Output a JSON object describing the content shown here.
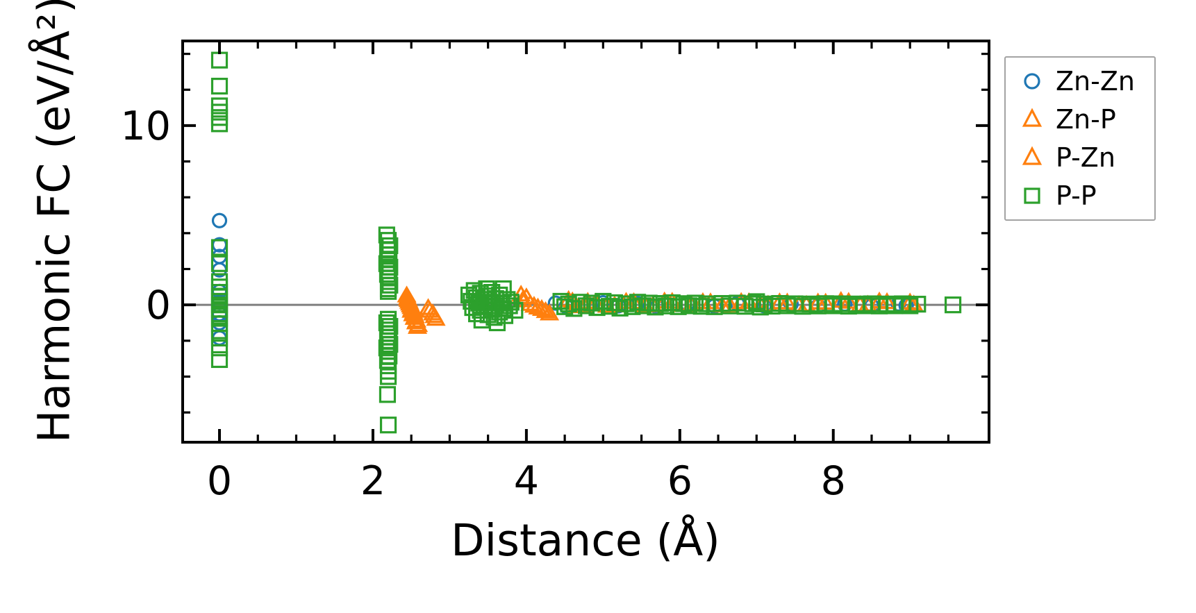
{
  "figure": {
    "background": "#ffffff",
    "axes": {
      "xlabel": "Distance (Å)",
      "ylabel": "Harmonic FC (eV/Å²)",
      "xlim": [
        -0.48,
        10.03
      ],
      "ylim": [
        -7.66,
        14.72
      ],
      "xtick_labels": [
        "0",
        "2",
        "4",
        "6",
        "8"
      ],
      "xticks_major": [
        0,
        2,
        4,
        6,
        8
      ],
      "xticks_minor": [
        0.5,
        1.0,
        1.5,
        2.5,
        3.0,
        3.5,
        4.5,
        5.0,
        5.5,
        6.5,
        7.0,
        7.5,
        8.5,
        9.0,
        9.5
      ],
      "ytick_labels": [
        "0",
        "10"
      ],
      "yticks_major": [
        0,
        10
      ],
      "yticks_minor": [
        -6,
        -4,
        -2,
        2,
        4,
        6,
        8,
        12,
        14
      ],
      "spine_color": "#000000",
      "zero_line_color": "#7f7f7f",
      "tick_label_color": "#000000"
    }
  },
  "chart_data": {
    "type": "scatter",
    "title": "",
    "xlabel": "Distance (Å)",
    "ylabel": "Harmonic FC (eV/Å²)",
    "xlim": [
      -0.48,
      10.03
    ],
    "ylim": [
      -7.66,
      14.72
    ],
    "grid": false,
    "legend_position": "outside-right",
    "series": [
      {
        "name": "Zn-Zn",
        "marker": "circle",
        "color": "#1f77b4",
        "points": [
          [
            0,
            4.7
          ],
          [
            0,
            3.35
          ],
          [
            0,
            2.7
          ],
          [
            0,
            1.95
          ],
          [
            0,
            0.75
          ],
          [
            0,
            0.15
          ],
          [
            0,
            -0.5
          ],
          [
            0,
            -1.0
          ],
          [
            0,
            -1.85
          ],
          [
            4.38,
            0.1
          ],
          [
            4.52,
            -0.08
          ],
          [
            5.0,
            0.12
          ],
          [
            5.2,
            -0.05
          ],
          [
            5.45,
            0.08
          ],
          [
            5.7,
            -0.1
          ],
          [
            6.1,
            0.05
          ],
          [
            6.45,
            -0.06
          ],
          [
            6.75,
            0.08
          ],
          [
            7.1,
            -0.05
          ],
          [
            7.45,
            0.05
          ],
          [
            7.8,
            -0.07
          ],
          [
            8.15,
            0.04
          ],
          [
            8.5,
            -0.05
          ],
          [
            8.85,
            0.05
          ],
          [
            8.95,
            -0.04
          ]
        ]
      },
      {
        "name": "Zn-P",
        "marker": "triangle",
        "color": "#ff7f0e",
        "points": [
          [
            2.44,
            0.45
          ],
          [
            2.46,
            0.2
          ],
          [
            2.48,
            0.0
          ],
          [
            2.5,
            -0.2
          ],
          [
            2.5,
            -0.4
          ],
          [
            2.52,
            -0.6
          ],
          [
            2.54,
            -0.8
          ],
          [
            2.56,
            -1.05
          ],
          [
            2.58,
            -1.3
          ],
          [
            2.72,
            -0.25
          ],
          [
            2.78,
            -0.55
          ],
          [
            2.82,
            -0.85
          ],
          [
            3.93,
            0.5
          ],
          [
            4.0,
            0.35
          ],
          [
            4.1,
            -0.12
          ],
          [
            4.2,
            -0.3
          ],
          [
            4.3,
            -0.55
          ],
          [
            4.55,
            0.2
          ],
          [
            4.65,
            -0.15
          ],
          [
            4.8,
            0.1
          ],
          [
            5.05,
            -0.12
          ],
          [
            5.3,
            0.1
          ],
          [
            5.55,
            -0.1
          ],
          [
            5.8,
            0.12
          ],
          [
            6.05,
            -0.08
          ],
          [
            6.3,
            0.08
          ],
          [
            6.55,
            -0.1
          ],
          [
            6.8,
            0.09
          ],
          [
            7.05,
            -0.07
          ],
          [
            7.3,
            0.07
          ],
          [
            7.55,
            -0.08
          ],
          [
            7.8,
            0.06
          ],
          [
            8.1,
            0.15
          ],
          [
            8.35,
            -0.08
          ],
          [
            8.6,
            0.12
          ],
          [
            9.05,
            -0.05
          ]
        ]
      },
      {
        "name": "P-Zn",
        "marker": "triangle",
        "color": "#ff7f0e",
        "points": [
          [
            2.45,
            0.3
          ],
          [
            2.47,
            0.1
          ],
          [
            2.49,
            -0.1
          ],
          [
            2.51,
            -0.3
          ],
          [
            2.53,
            -0.5
          ],
          [
            2.55,
            -0.7
          ],
          [
            2.57,
            -0.95
          ],
          [
            2.59,
            -1.2
          ],
          [
            2.74,
            -0.4
          ],
          [
            2.8,
            -0.7
          ],
          [
            3.95,
            0.18
          ],
          [
            4.05,
            -0.02
          ],
          [
            4.15,
            -0.22
          ],
          [
            4.25,
            -0.42
          ],
          [
            4.6,
            0.12
          ],
          [
            4.75,
            -0.1
          ],
          [
            4.9,
            0.05
          ],
          [
            5.15,
            -0.1
          ],
          [
            5.4,
            0.08
          ],
          [
            5.65,
            -0.09
          ],
          [
            5.9,
            0.1
          ],
          [
            6.15,
            -0.07
          ],
          [
            6.4,
            0.07
          ],
          [
            6.65,
            -0.09
          ],
          [
            6.9,
            0.08
          ],
          [
            7.15,
            -0.06
          ],
          [
            7.4,
            0.06
          ],
          [
            7.65,
            -0.07
          ],
          [
            7.9,
            0.05
          ],
          [
            8.2,
            0.1
          ],
          [
            8.45,
            -0.06
          ],
          [
            8.7,
            0.08
          ],
          [
            9.0,
            0.06
          ]
        ]
      },
      {
        "name": "P-P",
        "marker": "square",
        "color": "#2ca02c",
        "points": [
          [
            0,
            13.65
          ],
          [
            0,
            12.2
          ],
          [
            0,
            11.1
          ],
          [
            0,
            10.75
          ],
          [
            0,
            10.45
          ],
          [
            0,
            10.1
          ],
          [
            0,
            3.2
          ],
          [
            0,
            2.3
          ],
          [
            0,
            1.3
          ],
          [
            0,
            1.0
          ],
          [
            0,
            0.7
          ],
          [
            0,
            0.45
          ],
          [
            0,
            0.2
          ],
          [
            0,
            0.0
          ],
          [
            0,
            -0.25
          ],
          [
            0,
            -0.5
          ],
          [
            0,
            -0.75
          ],
          [
            0,
            -1.05
          ],
          [
            0,
            -1.45
          ],
          [
            0,
            -1.85
          ],
          [
            0,
            -2.4
          ],
          [
            0,
            -3.05
          ],
          [
            2.18,
            3.9
          ],
          [
            2.2,
            3.6
          ],
          [
            2.22,
            3.3
          ],
          [
            2.19,
            3.05
          ],
          [
            2.21,
            2.8
          ],
          [
            2.2,
            2.55
          ],
          [
            2.18,
            2.3
          ],
          [
            2.22,
            2.1
          ],
          [
            2.2,
            1.9
          ],
          [
            2.19,
            1.7
          ],
          [
            2.21,
            1.5
          ],
          [
            2.2,
            1.3
          ],
          [
            2.22,
            1.1
          ],
          [
            2.2,
            0.9
          ],
          [
            2.2,
            0.75
          ],
          [
            2.2,
            -0.8
          ],
          [
            2.18,
            -1.0
          ],
          [
            2.22,
            -1.2
          ],
          [
            2.2,
            -1.4
          ],
          [
            2.19,
            -1.6
          ],
          [
            2.21,
            -1.8
          ],
          [
            2.2,
            -2.0
          ],
          [
            2.22,
            -2.2
          ],
          [
            2.18,
            -2.4
          ],
          [
            2.2,
            -2.6
          ],
          [
            2.21,
            -2.85
          ],
          [
            2.19,
            -3.1
          ],
          [
            2.2,
            -3.4
          ],
          [
            2.2,
            -3.7
          ],
          [
            2.2,
            -4.0
          ],
          [
            2.19,
            -5.0
          ],
          [
            2.2,
            -6.7
          ],
          [
            3.25,
            0.55
          ],
          [
            3.28,
            0.2
          ],
          [
            3.3,
            -0.15
          ],
          [
            3.32,
            0.8
          ],
          [
            3.35,
            0.4
          ],
          [
            3.35,
            -0.5
          ],
          [
            3.38,
            0.1
          ],
          [
            3.4,
            0.65
          ],
          [
            3.4,
            -0.3
          ],
          [
            3.42,
            -0.85
          ],
          [
            3.45,
            0.3
          ],
          [
            3.45,
            -0.1
          ],
          [
            3.48,
            0.9
          ],
          [
            3.5,
            0.5
          ],
          [
            3.5,
            -0.55
          ],
          [
            3.52,
            0.15
          ],
          [
            3.55,
            -0.25
          ],
          [
            3.55,
            0.7
          ],
          [
            3.58,
            -0.7
          ],
          [
            3.6,
            0.35
          ],
          [
            3.6,
            -0.05
          ],
          [
            3.62,
            -1.0
          ],
          [
            3.65,
            0.55
          ],
          [
            3.65,
            -0.4
          ],
          [
            3.68,
            0.1
          ],
          [
            3.7,
            0.9
          ],
          [
            3.7,
            -0.2
          ],
          [
            3.72,
            -0.6
          ],
          [
            3.75,
            0.3
          ],
          [
            3.78,
            -0.05
          ],
          [
            3.8,
            0.15
          ],
          [
            3.85,
            -0.3
          ],
          [
            4.45,
            0.2
          ],
          [
            4.5,
            -0.1
          ],
          [
            4.55,
            0.05
          ],
          [
            4.62,
            -0.2
          ],
          [
            4.7,
            0.15
          ],
          [
            4.78,
            -0.05
          ],
          [
            4.85,
            0.1
          ],
          [
            4.92,
            -0.15
          ],
          [
            5.0,
            0.2
          ],
          [
            5.08,
            -0.08
          ],
          [
            5.15,
            0.12
          ],
          [
            5.22,
            -0.18
          ],
          [
            5.3,
            0.06
          ],
          [
            5.38,
            -0.1
          ],
          [
            5.45,
            0.15
          ],
          [
            5.52,
            -0.05
          ],
          [
            5.6,
            0.1
          ],
          [
            5.68,
            -0.12
          ],
          [
            5.75,
            0.08
          ],
          [
            5.82,
            -0.06
          ],
          [
            5.9,
            0.12
          ],
          [
            5.98,
            -0.1
          ],
          [
            6.05,
            0.07
          ],
          [
            6.12,
            -0.05
          ],
          [
            6.2,
            0.1
          ],
          [
            6.28,
            -0.08
          ],
          [
            6.35,
            0.06
          ],
          [
            6.45,
            -0.1
          ],
          [
            6.55,
            0.08
          ],
          [
            6.65,
            -0.06
          ],
          [
            6.75,
            0.1
          ],
          [
            6.85,
            -0.08
          ],
          [
            6.95,
            0.06
          ],
          [
            7.0,
            0.18
          ],
          [
            7.05,
            -0.12
          ],
          [
            7.1,
            0.05
          ],
          [
            7.2,
            -0.07
          ],
          [
            7.3,
            0.08
          ],
          [
            7.4,
            -0.05
          ],
          [
            7.5,
            0.06
          ],
          [
            7.6,
            -0.08
          ],
          [
            7.7,
            0.05
          ],
          [
            7.8,
            -0.06
          ],
          [
            7.9,
            0.07
          ],
          [
            8.0,
            -0.05
          ],
          [
            8.1,
            0.06
          ],
          [
            8.2,
            -0.07
          ],
          [
            8.3,
            0.05
          ],
          [
            8.4,
            -0.05
          ],
          [
            8.5,
            0.06
          ],
          [
            8.6,
            -0.06
          ],
          [
            8.7,
            0.05
          ],
          [
            8.8,
            -0.05
          ],
          [
            8.9,
            0.06
          ],
          [
            9.0,
            -0.05
          ],
          [
            9.1,
            0.04
          ],
          [
            9.56,
            0.0
          ]
        ]
      }
    ]
  }
}
